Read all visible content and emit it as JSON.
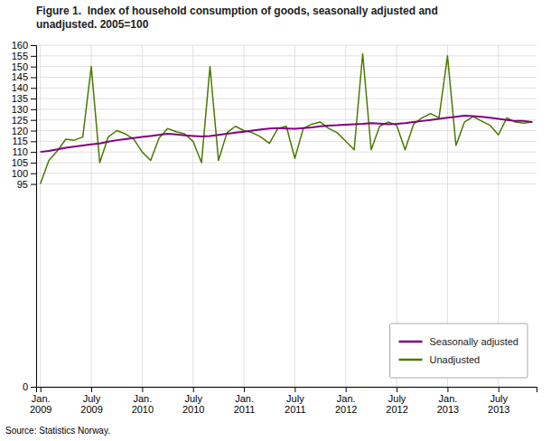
{
  "chart_data": {
    "type": "line",
    "title": "Figure 1.  Index of household consumption of goods, seasonally adjusted and\nunadjusted. 2005=100",
    "source": "Source: Statistics Norway.",
    "categories": [
      "Jan.\n2009",
      null,
      null,
      null,
      null,
      null,
      "July\n2009",
      null,
      null,
      null,
      null,
      null,
      "Jan.\n2010",
      null,
      null,
      null,
      null,
      null,
      "July\n2010",
      null,
      null,
      null,
      null,
      null,
      "Jan.\n2011",
      null,
      null,
      null,
      null,
      null,
      "July\n2011",
      null,
      null,
      null,
      null,
      null,
      "Jan.\n2012",
      null,
      null,
      null,
      null,
      null,
      "July\n2012",
      null,
      null,
      null,
      null,
      null,
      "Jan.\n2013",
      null,
      null,
      null,
      null,
      null,
      "July\n2013",
      null,
      null,
      null,
      null
    ],
    "series": [
      {
        "name": "Seasonally adjusted",
        "color": "#800080",
        "values": [
          110.0,
          110.5,
          111.2,
          112.0,
          112.5,
          113.0,
          113.5,
          114.0,
          114.8,
          115.5,
          116.0,
          116.5,
          117.0,
          117.5,
          118.0,
          118.5,
          118.2,
          117.8,
          117.5,
          117.2,
          117.5,
          118.0,
          118.5,
          119.0,
          119.5,
          120.0,
          120.5,
          121.0,
          121.2,
          121.0,
          120.8,
          121.2,
          121.5,
          122.0,
          122.3,
          122.5,
          122.8,
          123.0,
          123.2,
          123.5,
          123.3,
          123.0,
          123.2,
          123.5,
          124.0,
          124.5,
          125.0,
          125.5,
          126.0,
          126.5,
          127.0,
          126.8,
          126.5,
          126.0,
          125.5,
          125.0,
          124.5,
          124.5,
          124.0
        ]
      },
      {
        "name": "Unadjusted",
        "color": "#4a7a00",
        "values": [
          95.0,
          106.0,
          110.5,
          116.0,
          115.5,
          117.0,
          150.0,
          105.0,
          117.0,
          120.0,
          118.5,
          116.0,
          110.0,
          106.0,
          116.5,
          121.0,
          119.5,
          118.5,
          115.0,
          105.0,
          150.0,
          106.0,
          119.0,
          122.0,
          120.0,
          119.0,
          117.0,
          114.0,
          121.0,
          122.0,
          107.0,
          121.0,
          123.0,
          124.0,
          121.0,
          119.0,
          115.0,
          111.0,
          156.0,
          111.0,
          122.0,
          124.0,
          122.5,
          111.0,
          123.0,
          126.0,
          128.0,
          126.0,
          155.0,
          113.0,
          124.0,
          126.5,
          124.5,
          122.5,
          118.0,
          126.0,
          124.0,
          123.5,
          124.0
        ]
      }
    ],
    "ylim": [
      0,
      160
    ],
    "yticks": [
      0,
      95,
      100,
      105,
      110,
      115,
      120,
      125,
      130,
      135,
      140,
      145,
      150,
      155,
      160
    ],
    "grid": true,
    "legend": "lower right"
  }
}
